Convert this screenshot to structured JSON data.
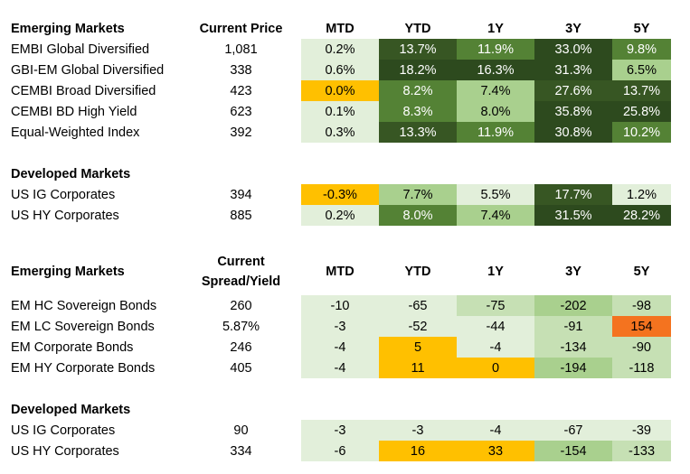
{
  "colors": {
    "orange_yellow": "#ffc000",
    "orange": "#f4731f",
    "pale_green": "#e2efda",
    "light_green": "#a9d08e",
    "mid_green": "#548235",
    "dark_green": "#375623",
    "darkest_green": "#2d4a1e"
  },
  "returns": {
    "em_header": "Emerging Markets",
    "price_header": "Current Price",
    "period_headers": [
      "MTD",
      "YTD",
      "1Y",
      "3Y",
      "5Y"
    ],
    "em_rows": [
      {
        "name": "EMBI Global Diversified",
        "price": "1,081",
        "cells": [
          {
            "v": "0.2%",
            "bg": "#e2efda",
            "fg": "light"
          },
          {
            "v": "13.7%",
            "bg": "#375623",
            "fg": "dark"
          },
          {
            "v": "11.9%",
            "bg": "#548235",
            "fg": "dark"
          },
          {
            "v": "33.0%",
            "bg": "#2d4a1e",
            "fg": "dark"
          },
          {
            "v": "9.8%",
            "bg": "#548235",
            "fg": "dark"
          }
        ]
      },
      {
        "name": "GBI-EM Global Diversified",
        "price": "338",
        "cells": [
          {
            "v": "0.6%",
            "bg": "#e2efda",
            "fg": "light"
          },
          {
            "v": "18.2%",
            "bg": "#2d4a1e",
            "fg": "dark"
          },
          {
            "v": "16.3%",
            "bg": "#2d4a1e",
            "fg": "dark"
          },
          {
            "v": "31.3%",
            "bg": "#2d4a1e",
            "fg": "dark"
          },
          {
            "v": "6.5%",
            "bg": "#a9d08e",
            "fg": "light"
          }
        ]
      },
      {
        "name": "CEMBI Broad Diversified",
        "price": "423",
        "cells": [
          {
            "v": "0.0%",
            "bg": "#ffc000",
            "fg": "light"
          },
          {
            "v": "8.2%",
            "bg": "#548235",
            "fg": "dark"
          },
          {
            "v": "7.4%",
            "bg": "#a9d08e",
            "fg": "light"
          },
          {
            "v": "27.6%",
            "bg": "#375623",
            "fg": "dark"
          },
          {
            "v": "13.7%",
            "bg": "#375623",
            "fg": "dark"
          }
        ]
      },
      {
        "name": "CEMBI BD High Yield",
        "price": "623",
        "cells": [
          {
            "v": "0.1%",
            "bg": "#e2efda",
            "fg": "light"
          },
          {
            "v": "8.3%",
            "bg": "#548235",
            "fg": "dark"
          },
          {
            "v": "8.0%",
            "bg": "#a9d08e",
            "fg": "light"
          },
          {
            "v": "35.8%",
            "bg": "#2d4a1e",
            "fg": "dark"
          },
          {
            "v": "25.8%",
            "bg": "#2d4a1e",
            "fg": "dark"
          }
        ]
      },
      {
        "name": "Equal-Weighted Index",
        "price": "392",
        "cells": [
          {
            "v": "0.3%",
            "bg": "#e2efda",
            "fg": "light"
          },
          {
            "v": "13.3%",
            "bg": "#375623",
            "fg": "dark"
          },
          {
            "v": "11.9%",
            "bg": "#548235",
            "fg": "dark"
          },
          {
            "v": "30.8%",
            "bg": "#2d4a1e",
            "fg": "dark"
          },
          {
            "v": "10.2%",
            "bg": "#548235",
            "fg": "dark"
          }
        ]
      }
    ],
    "dm_header": "Developed Markets",
    "dm_rows": [
      {
        "name": "US IG Corporates",
        "price": "394",
        "cells": [
          {
            "v": "-0.3%",
            "bg": "#ffc000",
            "fg": "light"
          },
          {
            "v": "7.7%",
            "bg": "#a9d08e",
            "fg": "light"
          },
          {
            "v": "5.5%",
            "bg": "#e2efda",
            "fg": "light"
          },
          {
            "v": "17.7%",
            "bg": "#375623",
            "fg": "dark"
          },
          {
            "v": "1.2%",
            "bg": "#e2efda",
            "fg": "light"
          }
        ]
      },
      {
        "name": "US HY Corporates",
        "price": "885",
        "cells": [
          {
            "v": "0.2%",
            "bg": "#e2efda",
            "fg": "light"
          },
          {
            "v": "8.0%",
            "bg": "#548235",
            "fg": "dark"
          },
          {
            "v": "7.4%",
            "bg": "#a9d08e",
            "fg": "light"
          },
          {
            "v": "31.5%",
            "bg": "#2d4a1e",
            "fg": "dark"
          },
          {
            "v": "28.2%",
            "bg": "#2d4a1e",
            "fg": "dark"
          }
        ]
      }
    ]
  },
  "spreads": {
    "em_header": "Emerging Markets",
    "spread_header_line1": "Current",
    "spread_header_line2": "Spread/Yield",
    "period_headers": [
      "MTD",
      "YTD",
      "1Y",
      "3Y",
      "5Y"
    ],
    "em_rows": [
      {
        "name": "EM HC Sovereign Bonds",
        "price": "260",
        "cells": [
          {
            "v": "-10",
            "bg": "#e2efda",
            "fg": "light"
          },
          {
            "v": "-65",
            "bg": "#e2efda",
            "fg": "light"
          },
          {
            "v": "-75",
            "bg": "#c6e0b4",
            "fg": "light"
          },
          {
            "v": "-202",
            "bg": "#a9d08e",
            "fg": "light"
          },
          {
            "v": "-98",
            "bg": "#c6e0b4",
            "fg": "light"
          }
        ]
      },
      {
        "name": "EM LC Sovereign Bonds",
        "price": "5.87%",
        "cells": [
          {
            "v": "-3",
            "bg": "#e2efda",
            "fg": "light"
          },
          {
            "v": "-52",
            "bg": "#e2efda",
            "fg": "light"
          },
          {
            "v": "-44",
            "bg": "#e2efda",
            "fg": "light"
          },
          {
            "v": "-91",
            "bg": "#c6e0b4",
            "fg": "light"
          },
          {
            "v": "154",
            "bg": "#f4731f",
            "fg": "light"
          }
        ]
      },
      {
        "name": "EM Corporate Bonds",
        "price": "246",
        "cells": [
          {
            "v": "-4",
            "bg": "#e2efda",
            "fg": "light"
          },
          {
            "v": "5",
            "bg": "#ffc000",
            "fg": "light"
          },
          {
            "v": "-4",
            "bg": "#e2efda",
            "fg": "light"
          },
          {
            "v": "-134",
            "bg": "#c6e0b4",
            "fg": "light"
          },
          {
            "v": "-90",
            "bg": "#c6e0b4",
            "fg": "light"
          }
        ]
      },
      {
        "name": "EM HY Corporate Bonds",
        "price": "405",
        "cells": [
          {
            "v": "-4",
            "bg": "#e2efda",
            "fg": "light"
          },
          {
            "v": "11",
            "bg": "#ffc000",
            "fg": "light"
          },
          {
            "v": "0",
            "bg": "#ffc000",
            "fg": "light"
          },
          {
            "v": "-194",
            "bg": "#a9d08e",
            "fg": "light"
          },
          {
            "v": "-118",
            "bg": "#c6e0b4",
            "fg": "light"
          }
        ]
      }
    ],
    "dm_header": "Developed Markets",
    "dm_rows": [
      {
        "name": "US IG Corporates",
        "price": "90",
        "cells": [
          {
            "v": "-3",
            "bg": "#e2efda",
            "fg": "light"
          },
          {
            "v": "-3",
            "bg": "#e2efda",
            "fg": "light"
          },
          {
            "v": "-4",
            "bg": "#e2efda",
            "fg": "light"
          },
          {
            "v": "-67",
            "bg": "#e2efda",
            "fg": "light"
          },
          {
            "v": "-39",
            "bg": "#e2efda",
            "fg": "light"
          }
        ]
      },
      {
        "name": "US HY Corporates",
        "price": "334",
        "cells": [
          {
            "v": "-6",
            "bg": "#e2efda",
            "fg": "light"
          },
          {
            "v": "16",
            "bg": "#ffc000",
            "fg": "light"
          },
          {
            "v": "33",
            "bg": "#ffc000",
            "fg": "light"
          },
          {
            "v": "-154",
            "bg": "#a9d08e",
            "fg": "light"
          },
          {
            "v": "-133",
            "bg": "#c6e0b4",
            "fg": "light"
          }
        ]
      }
    ]
  }
}
